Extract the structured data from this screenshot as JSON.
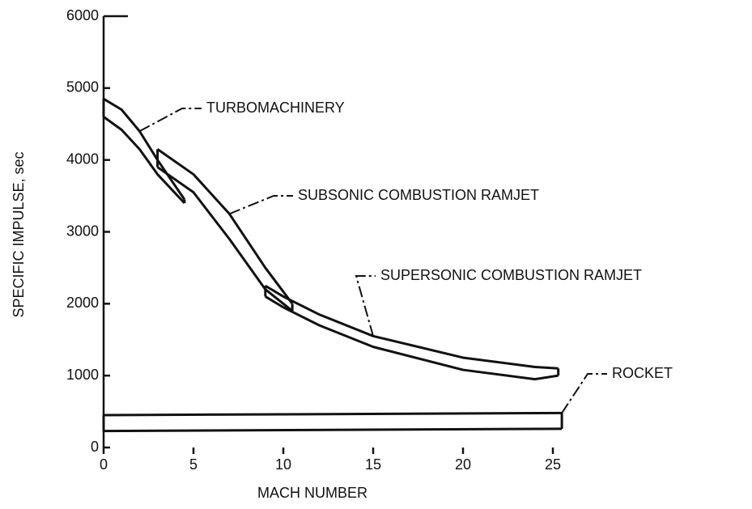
{
  "chart_data": {
    "type": "band",
    "xlabel": "MACH NUMBER",
    "ylabel": "SPECIFIC IMPULSE, sec",
    "xlim": [
      0,
      25
    ],
    "ylim": [
      0,
      6000
    ],
    "xticks": [
      0,
      5,
      10,
      15,
      20,
      25
    ],
    "yticks": [
      0,
      1000,
      2000,
      3000,
      4000,
      5000,
      6000
    ],
    "color": "#111111",
    "series": [
      {
        "name": "TURBOMACHINERY",
        "x": [
          0,
          1,
          2,
          3,
          4.5
        ],
        "upper": [
          4850,
          4700,
          4400,
          4000,
          3450
        ],
        "lower": [
          4600,
          4420,
          4150,
          3800,
          3400
        ]
      },
      {
        "name": "SUBSONIC COMBUSTION RAMJET",
        "x": [
          3,
          5,
          7,
          9,
          10.5
        ],
        "upper": [
          4150,
          3800,
          3250,
          2500,
          2000
        ],
        "lower": [
          3900,
          3550,
          2900,
          2200,
          1900
        ]
      },
      {
        "name": "SUPERSONIC COMBUSTION RAMJET",
        "x": [
          9,
          10,
          12,
          15,
          20,
          24,
          25.3
        ],
        "upper": [
          2250,
          2100,
          1850,
          1550,
          1250,
          1120,
          1100
        ],
        "lower": [
          2100,
          1950,
          1700,
          1400,
          1080,
          950,
          1000
        ]
      },
      {
        "name": "ROCKET",
        "x": [
          0,
          25.5
        ],
        "upper": [
          450,
          480
        ],
        "lower": [
          230,
          260
        ]
      }
    ]
  }
}
